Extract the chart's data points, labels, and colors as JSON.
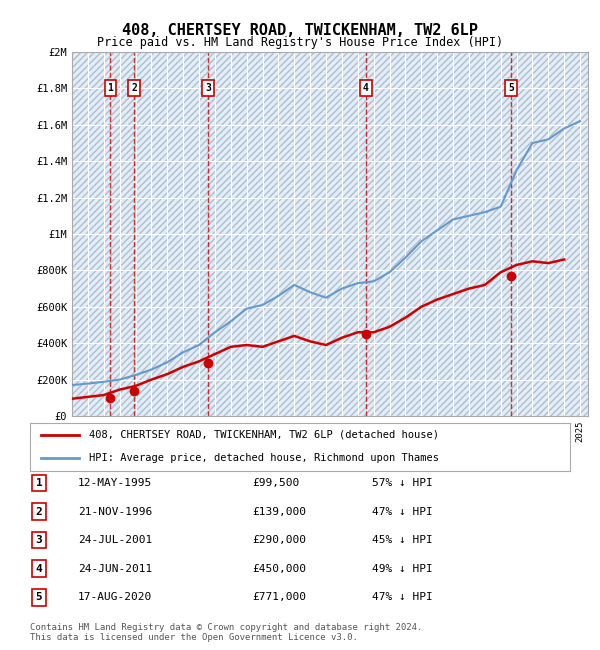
{
  "title": "408, CHERTSEY ROAD, TWICKENHAM, TW2 6LP",
  "subtitle": "Price paid vs. HM Land Registry's House Price Index (HPI)",
  "title_fontsize": 11,
  "subtitle_fontsize": 9,
  "ylabel": "",
  "xlabel": "",
  "ylim": [
    0,
    2000000
  ],
  "yticks": [
    0,
    200000,
    400000,
    600000,
    800000,
    1000000,
    1200000,
    1400000,
    1600000,
    1800000,
    2000000
  ],
  "ytick_labels": [
    "£0",
    "£200K",
    "£400K",
    "£600K",
    "£800K",
    "£1M",
    "£1.2M",
    "£1.4M",
    "£1.6M",
    "£1.8M",
    "£2M"
  ],
  "x_start_year": 1993,
  "x_end_year": 2025,
  "background_color": "#ffffff",
  "plot_bg_color": "#ddeeff",
  "hatch_bg_color": "#cccccc",
  "grid_color": "#ffffff",
  "red_line_color": "#cc0000",
  "blue_line_color": "#6699cc",
  "sale_dates": [
    "1995-05-12",
    "1996-11-21",
    "2001-07-24",
    "2011-06-24",
    "2020-08-17"
  ],
  "sale_prices": [
    99500,
    139000,
    290000,
    450000,
    771000
  ],
  "sale_labels": [
    "1",
    "2",
    "3",
    "4",
    "5"
  ],
  "legend_red_label": "408, CHERTSEY ROAD, TWICKENHAM, TW2 6LP (detached house)",
  "legend_blue_label": "HPI: Average price, detached house, Richmond upon Thames",
  "table_rows": [
    [
      "1",
      "12-MAY-1995",
      "£99,500",
      "57% ↓ HPI"
    ],
    [
      "2",
      "21-NOV-1996",
      "£139,000",
      "47% ↓ HPI"
    ],
    [
      "3",
      "24-JUL-2001",
      "£290,000",
      "45% ↓ HPI"
    ],
    [
      "4",
      "24-JUN-2011",
      "£450,000",
      "49% ↓ HPI"
    ],
    [
      "5",
      "17-AUG-2020",
      "£771,000",
      "47% ↓ HPI"
    ]
  ],
  "footer_text": "Contains HM Land Registry data © Crown copyright and database right 2024.\nThis data is licensed under the Open Government Licence v3.0.",
  "hpi_data_years": [
    1993,
    1994,
    1995,
    1996,
    1997,
    1998,
    1999,
    2000,
    2001,
    2002,
    2003,
    2004,
    2005,
    2006,
    2007,
    2008,
    2009,
    2010,
    2011,
    2012,
    2013,
    2014,
    2015,
    2016,
    2017,
    2018,
    2019,
    2020,
    2021,
    2022,
    2023,
    2024,
    2025
  ],
  "hpi_values": [
    170000,
    178000,
    188000,
    200000,
    225000,
    255000,
    295000,
    350000,
    390000,
    460000,
    520000,
    590000,
    610000,
    660000,
    720000,
    680000,
    650000,
    700000,
    730000,
    740000,
    790000,
    870000,
    960000,
    1020000,
    1080000,
    1100000,
    1120000,
    1150000,
    1350000,
    1500000,
    1520000,
    1580000,
    1620000
  ],
  "red_data_years": [
    1993,
    1994,
    1995,
    1996,
    1997,
    1998,
    1999,
    2000,
    2001,
    2002,
    2003,
    2004,
    2005,
    2006,
    2007,
    2008,
    2009,
    2010,
    2011,
    2012,
    2013,
    2014,
    2015,
    2016,
    2017,
    2018,
    2019,
    2020,
    2021,
    2022,
    2023,
    2024
  ],
  "red_values": [
    95000,
    105000,
    115000,
    145000,
    165000,
    200000,
    230000,
    270000,
    300000,
    340000,
    380000,
    390000,
    380000,
    410000,
    440000,
    410000,
    390000,
    430000,
    460000,
    460000,
    490000,
    540000,
    600000,
    640000,
    670000,
    700000,
    720000,
    790000,
    830000,
    850000,
    840000,
    860000
  ]
}
